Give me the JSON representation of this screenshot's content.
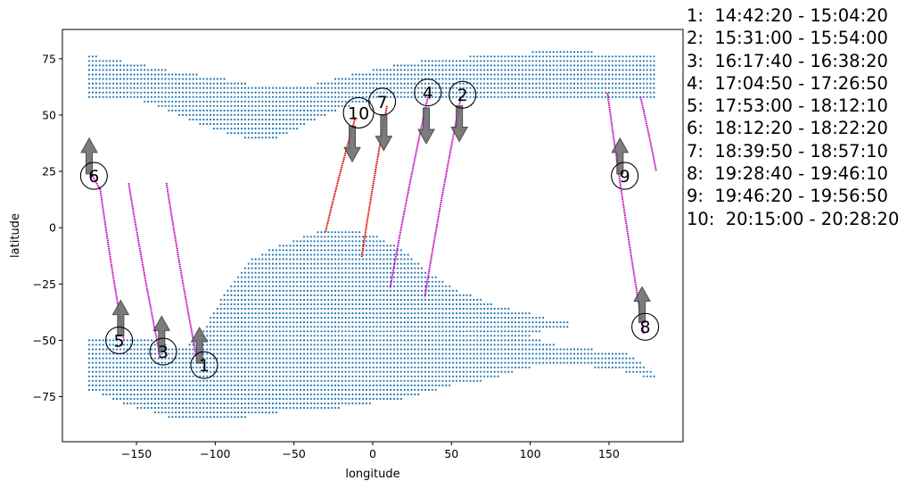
{
  "chart_data": {
    "type": "scatter",
    "xlabel": "longitude",
    "ylabel": "latitude",
    "xlim": [
      -197,
      197
    ],
    "ylim": [
      -95,
      88
    ],
    "x_ticks": [
      -150,
      -100,
      -50,
      0,
      50,
      100,
      150
    ],
    "y_ticks": [
      -75,
      -50,
      -25,
      0,
      25,
      50,
      75
    ],
    "grid": false,
    "colors": {
      "land": "#1f77b4",
      "track_magenta": "#c000c0",
      "track_red": "#e00000",
      "arrow": "#6e6e6e"
    },
    "legend_position": "right-outside",
    "legend": [
      "1:  14:42:20 - 15:04:20",
      "2:  15:31:00 - 15:54:00",
      "3:  16:17:40 - 16:38:20",
      "4:  17:04:50 - 17:26:50",
      "5:  17:53:00 - 18:12:10",
      "6:  18:12:20 - 18:22:20",
      "7:  18:39:50 - 18:57:10",
      "8:  19:28:40 - 19:46:10",
      "9:  19:46:20 - 19:56:50",
      "10:  20:15:00 - 20:28:20"
    ],
    "tracks": [
      {
        "id": "1",
        "color": "magenta",
        "direction": "north",
        "from": [
          -112,
          -57
        ],
        "to": [
          -131,
          20
        ]
      },
      {
        "id": "2",
        "color": "magenta",
        "direction": "south",
        "from": [
          56,
          58
        ],
        "to": [
          33,
          -31
        ]
      },
      {
        "id": "3",
        "color": "magenta",
        "direction": "north",
        "from": [
          -135,
          -57
        ],
        "to": [
          -155,
          20
        ]
      },
      {
        "id": "4",
        "color": "magenta",
        "direction": "south",
        "from": [
          35,
          58
        ],
        "to": [
          11,
          -27
        ]
      },
      {
        "id": "5",
        "color": "magenta",
        "direction": "north",
        "from": [
          -158,
          -50
        ],
        "to": [
          -173,
          17
        ]
      },
      {
        "id": "6",
        "color": "magenta",
        "direction": "north",
        "from": [
          -173,
          17
        ],
        "to": [
          -180,
          26
        ]
      },
      {
        "id": "7",
        "color": "red",
        "direction": "south",
        "from": [
          9,
          54
        ],
        "to": [
          -7,
          -13
        ]
      },
      {
        "id": "8",
        "color": "magenta",
        "direction": "north",
        "from": [
          172,
          -47
        ],
        "to": [
          149,
          60
        ]
      },
      {
        "id": "9",
        "color": "magenta",
        "direction": "north",
        "from": [
          170,
          58
        ],
        "to": [
          180,
          25
        ]
      },
      {
        "id": "10",
        "color": "red",
        "direction": "south",
        "from": [
          -11,
          49
        ],
        "to": [
          -30,
          -2
        ]
      }
    ],
    "labels": [
      {
        "text": "1",
        "x": -107,
        "y": -61
      },
      {
        "text": "2",
        "x": 57,
        "y": 59
      },
      {
        "text": "3",
        "x": -133,
        "y": -55
      },
      {
        "text": "4",
        "x": 35,
        "y": 60
      },
      {
        "text": "5",
        "x": -161,
        "y": -50
      },
      {
        "text": "6",
        "x": -177,
        "y": 23
      },
      {
        "text": "7",
        "x": 6,
        "y": 56
      },
      {
        "text": "8",
        "x": 173,
        "y": -44
      },
      {
        "text": "9",
        "x": 160,
        "y": 23
      },
      {
        "text": "10",
        "x": -9,
        "y": 51
      }
    ]
  }
}
